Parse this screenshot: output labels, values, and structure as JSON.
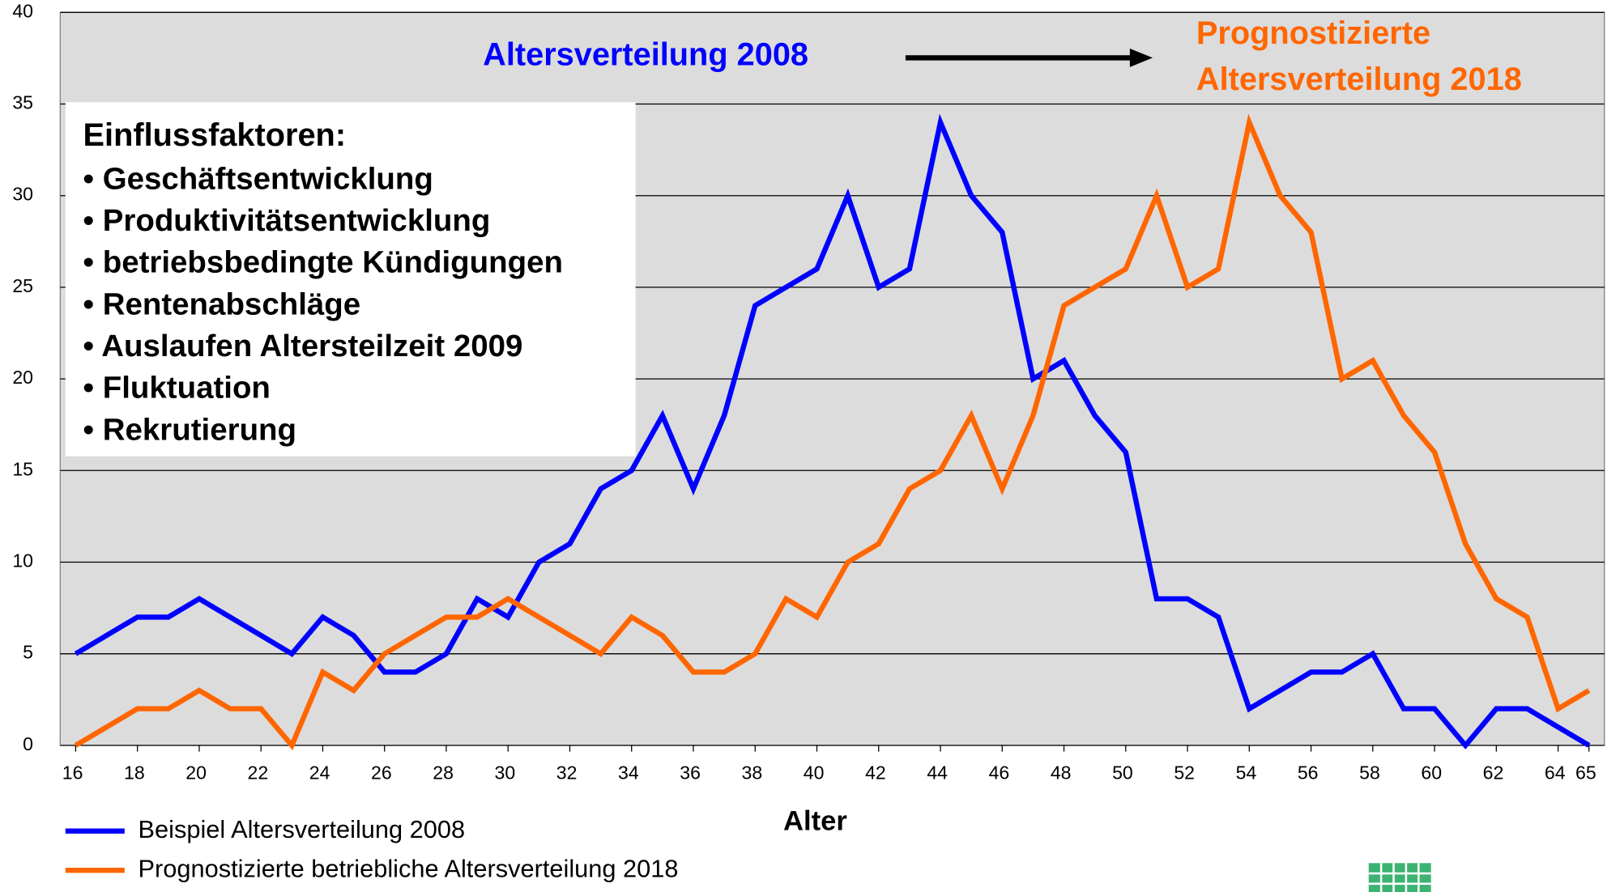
{
  "chart_data": {
    "type": "line",
    "x": [
      16,
      17,
      18,
      19,
      20,
      21,
      22,
      23,
      24,
      25,
      26,
      27,
      28,
      29,
      30,
      31,
      32,
      33,
      34,
      35,
      36,
      37,
      38,
      39,
      40,
      41,
      42,
      43,
      44,
      45,
      46,
      47,
      48,
      49,
      50,
      51,
      52,
      53,
      54,
      55,
      56,
      57,
      58,
      59,
      60,
      61,
      62,
      63,
      64,
      65
    ],
    "series": [
      {
        "name": "Beispiel Altersverteilung 2008",
        "color": "#0000ff",
        "values": [
          5,
          6,
          7,
          7,
          8,
          7,
          6,
          5,
          7,
          6,
          4,
          4,
          5,
          8,
          7,
          10,
          11,
          14,
          15,
          18,
          14,
          18,
          24,
          25,
          26,
          30,
          25,
          26,
          34,
          30,
          28,
          20,
          21,
          18,
          16,
          8,
          8,
          7,
          2,
          3,
          4,
          4,
          5,
          2,
          2,
          0,
          2,
          2,
          1,
          0
        ]
      },
      {
        "name": "Prognostizierte betriebliche Altersverteilung 2018",
        "color": "#ff6600",
        "values": [
          0,
          1,
          2,
          2,
          3,
          2,
          2,
          0,
          4,
          3,
          5,
          6,
          7,
          7,
          8,
          7,
          6,
          5,
          7,
          6,
          4,
          4,
          5,
          8,
          7,
          10,
          11,
          14,
          15,
          18,
          14,
          18,
          24,
          25,
          26,
          30,
          25,
          26,
          34,
          30,
          28,
          20,
          21,
          18,
          16,
          11,
          8,
          7,
          2,
          3
        ]
      }
    ],
    "xlabel": "Alter",
    "xlim": [
      15.5,
      65.5
    ],
    "xticks": [
      16,
      18,
      20,
      22,
      24,
      26,
      28,
      30,
      32,
      34,
      36,
      38,
      40,
      42,
      44,
      46,
      48,
      50,
      52,
      54,
      56,
      58,
      60,
      62,
      64,
      65
    ],
    "ylim": [
      0,
      40
    ],
    "yticks": [
      0,
      5,
      10,
      15,
      20,
      25,
      30,
      35,
      40
    ],
    "grid": true,
    "annotation_2008": "Altersverteilung 2008",
    "annotation_2018": [
      "Prognostizierte",
      "Altersverteilung 2018"
    ],
    "info_box": {
      "title": "Einflussfaktoren:",
      "items": [
        "• Geschäftsentwicklung",
        "• Produktivitätsentwicklung",
        "• betriebsbedingte Kündigungen",
        "• Rentenabschläge",
        "• Auslaufen Altersteilzeit 2009",
        "• Fluktuation",
        "• Rekrutierung"
      ]
    }
  }
}
